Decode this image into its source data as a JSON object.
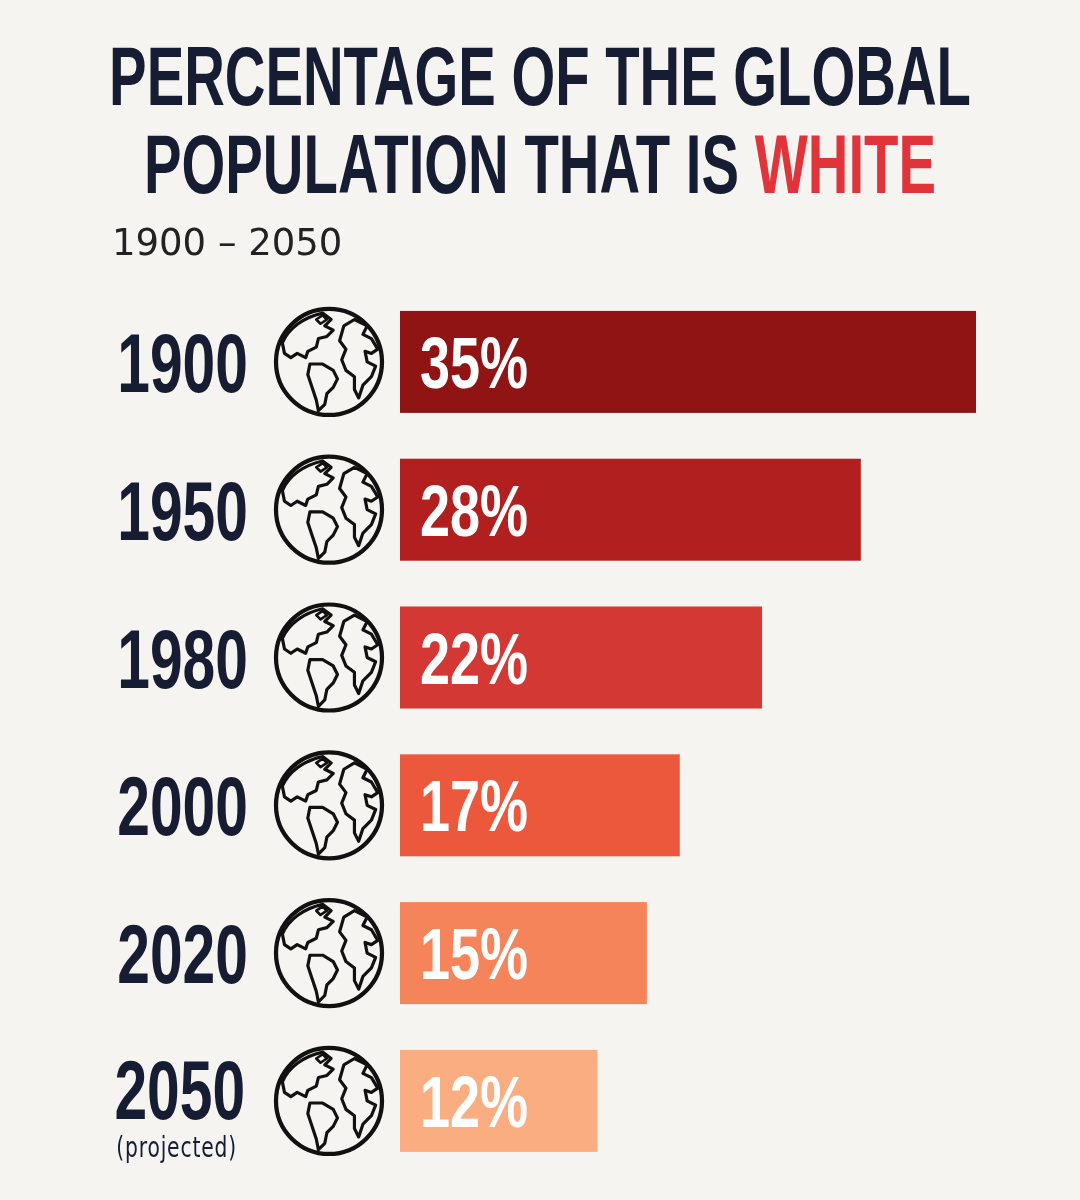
{
  "chart_data": {
    "type": "bar",
    "orientation": "horizontal",
    "title": "PERCENTAGE OF THE GLOBAL POPULATION THAT IS WHITE",
    "subtitle": "1900 – 2050",
    "categories": [
      "1900",
      "1950",
      "1980",
      "2000",
      "2020",
      "2050 (projected)"
    ],
    "values": [
      35,
      28,
      22,
      17,
      15,
      12
    ],
    "colors": [
      "#901414",
      "#b21f1f",
      "#d43834",
      "#ec583c",
      "#f6845a",
      "#f9ad80"
    ],
    "value_labels": [
      "35%",
      "28%",
      "22%",
      "17%",
      "15%",
      "12%"
    ],
    "tick_labels": "y"
  }
}
